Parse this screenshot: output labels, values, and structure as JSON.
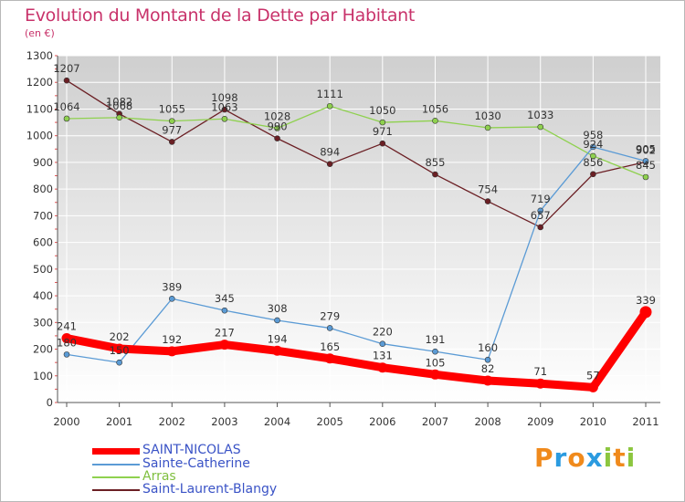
{
  "title": "Evolution du Montant de la Dette par Habitant",
  "subtitle": "(en €)",
  "watermark": {
    "letters": [
      "P",
      "r",
      "o",
      "x",
      "i",
      "t",
      "i"
    ],
    "colors": [
      "#f08a1c",
      "#2b9be0",
      "#f08a1c",
      "#2b9be0",
      "#8cc63f",
      "#f08a1c",
      "#8cc63f"
    ]
  },
  "chart_data": {
    "type": "line",
    "x": [
      "2000",
      "2001",
      "2002",
      "2003",
      "2004",
      "2005",
      "2006",
      "2007",
      "2008",
      "2009",
      "2010",
      "2011"
    ],
    "ylim": [
      0,
      1300
    ],
    "yticks": [
      0,
      100,
      200,
      300,
      400,
      500,
      600,
      700,
      800,
      900,
      1000,
      1100,
      1200,
      1300
    ],
    "grid": true,
    "legend_position": "bottom-left",
    "series": [
      {
        "name": "SAINT-NICOLAS",
        "color": "#ff0000",
        "values": [
          241,
          202,
          192,
          217,
          194,
          165,
          131,
          105,
          82,
          71,
          57,
          339
        ]
      },
      {
        "name": "Sainte-Catherine",
        "color": "#5b9bd5",
        "values": [
          180,
          150,
          389,
          345,
          308,
          279,
          220,
          191,
          160,
          719,
          958,
          905
        ]
      },
      {
        "name": "Arras",
        "color": "#8fd14f",
        "values": [
          1064,
          1068,
          1055,
          1063,
          1028,
          1111,
          1050,
          1056,
          1030,
          1033,
          924,
          845
        ]
      },
      {
        "name": "Saint-Laurent-Blangy",
        "color": "#6b1f24",
        "values": [
          1207,
          1082,
          977,
          1098,
          990,
          894,
          971,
          855,
          754,
          657,
          856,
          902
        ]
      }
    ],
    "data_labels": [
      [
        "241",
        "202",
        "192",
        "217",
        "194",
        "165",
        "131",
        "105",
        "82",
        "71",
        "57",
        "339"
      ],
      [
        "180",
        "150",
        "389",
        "345",
        "308",
        "279",
        "220",
        "191",
        "160",
        "719",
        "958",
        "905"
      ],
      [
        "1064",
        "1068",
        "1055",
        "1063",
        "1028",
        "1111",
        "1050",
        "1056",
        "1030",
        "1033",
        "924",
        "845"
      ],
      [
        "1207",
        "1082",
        "977",
        "1098",
        "990",
        "894",
        "971",
        "855",
        "754",
        "657",
        "856",
        "902"
      ]
    ]
  }
}
